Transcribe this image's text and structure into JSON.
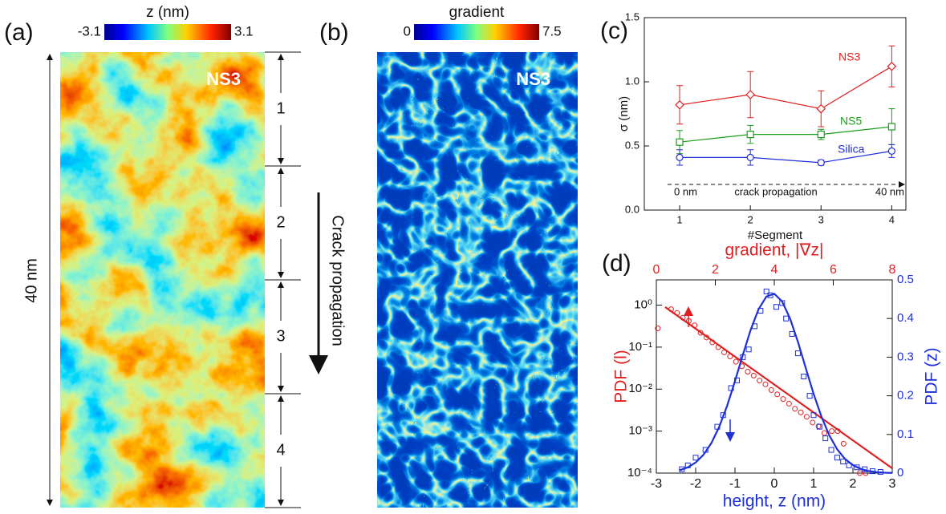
{
  "chart_data": [
    {
      "type": "image",
      "panel_label": "(a)",
      "colorbar_title": "z (nm)",
      "colorbar_ticks": [
        -3.1,
        3.1
      ],
      "inset_label": "NS3",
      "scale_label": "40 nm",
      "segments": [
        "1",
        "2",
        "3",
        "4"
      ],
      "annotation": "Crack propagation"
    },
    {
      "type": "image",
      "panel_label": "(b)",
      "colorbar_title": "gradient",
      "colorbar_ticks": [
        0,
        7.5
      ],
      "inset_label": "NS3"
    },
    {
      "type": "line",
      "panel_label": "(c)",
      "xlabel": "#Segment",
      "ylabel": "σ (nm)",
      "x": [
        1,
        2,
        3,
        4
      ],
      "xlim": [
        0.5,
        4.2
      ],
      "xticks": [
        1,
        2,
        3,
        4
      ],
      "ylim": [
        0,
        1.5
      ],
      "yticks": [
        {
          "value": 0,
          "label": "0.0"
        },
        0.5,
        {
          "value": 1,
          "label": "1.0"
        },
        1.5
      ],
      "series": [
        {
          "name": "NS3",
          "color": "#e02020",
          "marker": "diamond",
          "values": [
            0.82,
            0.9,
            0.79,
            1.12
          ],
          "errors": [
            0.15,
            0.18,
            0.14,
            0.16
          ]
        },
        {
          "name": "NS5",
          "color": "#1a9f1a",
          "marker": "square",
          "values": [
            0.53,
            0.59,
            0.59,
            0.65
          ],
          "errors": [
            0.09,
            0.07,
            0.04,
            0.14
          ]
        },
        {
          "name": "Silica",
          "color": "#1f2fd8",
          "marker": "circle",
          "values": [
            0.41,
            0.41,
            0.37,
            0.46
          ],
          "errors": [
            0.06,
            0.06,
            0.02,
            0.05
          ]
        }
      ],
      "annotations": [
        "0 nm",
        "crack propagation",
        "40 nm"
      ]
    },
    {
      "type": "scatter",
      "panel_label": "(d)",
      "xlabel": "height, z (nm)",
      "x2label": "gradient, |∇z|",
      "ylabel": "PDF (l)",
      "y2label": "PDF (z)",
      "xlim": [
        -3,
        3
      ],
      "xticks": [
        -3,
        -2,
        -1,
        0,
        1,
        2,
        3
      ],
      "x2lim": [
        0,
        8
      ],
      "x2ticks": [
        0,
        2,
        4,
        6,
        8
      ],
      "ylim": [
        0.0001,
        4
      ],
      "yscale": "log",
      "yticks": [
        {
          "value": 0.0001,
          "label": "10⁻⁴"
        },
        {
          "value": 0.001,
          "label": "10⁻³"
        },
        {
          "value": 0.01,
          "label": "10⁻²"
        },
        {
          "value": 0.1,
          "label": "10⁻¹"
        },
        {
          "value": 1,
          "label": "10⁰"
        }
      ],
      "y2lim": [
        0,
        0.5
      ],
      "y2ticks": [
        0,
        0.1,
        0.2,
        0.3,
        0.4,
        0.5
      ],
      "series": [
        {
          "color": "#e02020",
          "marker": "circle",
          "xaxis": "x2",
          "x": [
            0.05,
            0.5,
            0.7,
            0.9,
            1.1,
            1.3,
            1.5,
            1.7,
            1.9,
            2.1,
            2.3,
            2.5,
            2.7,
            2.9,
            3.1,
            3.3,
            3.5,
            3.7,
            3.9,
            4.1,
            4.3,
            4.5,
            4.7,
            4.9,
            5.1,
            5.3,
            5.5,
            5.7,
            5.95,
            6.15,
            6.35,
            6.9,
            7.1
          ],
          "values": [
            0.28,
            0.8,
            0.65,
            0.5,
            0.42,
            0.33,
            0.22,
            0.17,
            0.13,
            0.1,
            0.075,
            0.06,
            0.045,
            0.035,
            0.026,
            0.021,
            0.016,
            0.013,
            0.0095,
            0.0075,
            0.0058,
            0.0045,
            0.0034,
            0.0028,
            0.0022,
            0.0016,
            0.0013,
            0.0009,
            0.001,
            0.001,
            0.0005,
            0.0001,
            0.0001
          ]
        },
        {
          "color": "#e02020",
          "marker": "none",
          "xaxis": "x2",
          "x": [
            0.3,
            8
          ],
          "values": [
            0.9,
            0.00013
          ]
        },
        {
          "color": "#1f2fd8",
          "marker": "square",
          "axis": "y2",
          "x": [
            -2.35,
            -2.2,
            -2.0,
            -1.75,
            -1.45,
            -1.3,
            -1.1,
            -0.95,
            -0.8,
            -0.65,
            -0.5,
            -0.35,
            -0.2,
            -0.1,
            0.05,
            0.2,
            0.3,
            0.45,
            0.6,
            0.75,
            0.9,
            1.0,
            1.15,
            1.3,
            1.45,
            1.6,
            1.75,
            1.9,
            2.1,
            2.3,
            2.5,
            2.7
          ],
          "values": [
            0.01,
            0.02,
            0.04,
            0.06,
            0.12,
            0.15,
            0.22,
            0.24,
            0.3,
            0.32,
            0.38,
            0.42,
            0.47,
            0.46,
            0.43,
            0.44,
            0.4,
            0.36,
            0.31,
            0.25,
            0.2,
            0.15,
            0.12,
            0.09,
            0.06,
            0.04,
            0.03,
            0.02,
            0.015,
            0.01,
            0.005,
            0.003
          ]
        },
        {
          "color": "#1f2fd8",
          "marker": "none",
          "axis": "y2",
          "x": [
            -2.4,
            -2.2,
            -2.0,
            -1.8,
            -1.6,
            -1.4,
            -1.2,
            -1.0,
            -0.8,
            -0.6,
            -0.4,
            -0.2,
            0,
            0.2,
            0.4,
            0.6,
            0.8,
            1.0,
            1.2,
            1.4,
            1.6,
            1.8,
            2.0,
            2.2,
            2.4,
            2.6,
            2.8,
            3.0
          ],
          "values": [
            0.0076,
            0.0149,
            0.0274,
            0.0476,
            0.0777,
            0.12,
            0.174,
            0.238,
            0.306,
            0.371,
            0.424,
            0.457,
            0.464,
            0.444,
            0.4,
            0.34,
            0.272,
            0.205,
            0.146,
            0.0974,
            0.0615,
            0.0365,
            0.0204,
            0.0108,
            0.0054,
            0.0025,
            0.0011,
            0.0005
          ]
        }
      ]
    }
  ]
}
